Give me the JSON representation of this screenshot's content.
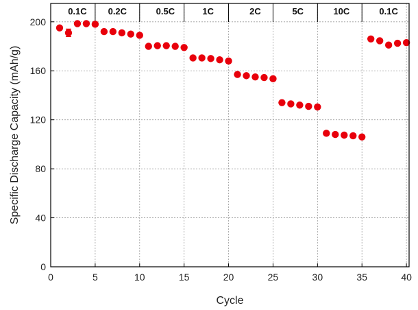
{
  "chart_data": {
    "type": "scatter",
    "title": "",
    "xlabel": "Cycle",
    "ylabel": "Specific Discharge Capacity (mAh/g)",
    "xlim": [
      0,
      40.3
    ],
    "ylim": [
      0,
      215
    ],
    "xticks": [
      0,
      5,
      10,
      15,
      20,
      25,
      30,
      35,
      40
    ],
    "yticks": [
      0,
      40,
      80,
      120,
      160,
      200
    ],
    "grid": true,
    "marker_color": "#e8000b",
    "segment_boundaries": [
      5,
      10,
      15,
      20,
      25,
      30,
      35
    ],
    "rate_labels": [
      {
        "text": "0.1C",
        "x": 3
      },
      {
        "text": "0.2C",
        "x": 7.5
      },
      {
        "text": "0.5C",
        "x": 12.9
      },
      {
        "text": "1C",
        "x": 17.7
      },
      {
        "text": "2C",
        "x": 23
      },
      {
        "text": "5C",
        "x": 27.8
      },
      {
        "text": "10C",
        "x": 32.7
      },
      {
        "text": "0.1C",
        "x": 38
      }
    ],
    "series": [
      {
        "points": [
          {
            "x": 1,
            "y": 195
          },
          {
            "x": 2,
            "y": 191
          },
          {
            "x": 3,
            "y": 198.5
          },
          {
            "x": 4,
            "y": 198.5
          },
          {
            "x": 5,
            "y": 198
          },
          {
            "x": 6,
            "y": 192
          },
          {
            "x": 7,
            "y": 192
          },
          {
            "x": 8,
            "y": 191
          },
          {
            "x": 9,
            "y": 190
          },
          {
            "x": 10,
            "y": 189
          },
          {
            "x": 11,
            "y": 180
          },
          {
            "x": 12,
            "y": 180.5
          },
          {
            "x": 13,
            "y": 180.5
          },
          {
            "x": 14,
            "y": 180
          },
          {
            "x": 15,
            "y": 179
          },
          {
            "x": 16,
            "y": 170.5
          },
          {
            "x": 17,
            "y": 170.5
          },
          {
            "x": 18,
            "y": 170
          },
          {
            "x": 19,
            "y": 169
          },
          {
            "x": 20,
            "y": 168
          },
          {
            "x": 21,
            "y": 157
          },
          {
            "x": 22,
            "y": 156
          },
          {
            "x": 23,
            "y": 155
          },
          {
            "x": 24,
            "y": 154.5
          },
          {
            "x": 25,
            "y": 153.5
          },
          {
            "x": 26,
            "y": 134
          },
          {
            "x": 27,
            "y": 133
          },
          {
            "x": 28,
            "y": 132
          },
          {
            "x": 29,
            "y": 131
          },
          {
            "x": 30,
            "y": 130.5
          },
          {
            "x": 31,
            "y": 109
          },
          {
            "x": 32,
            "y": 108
          },
          {
            "x": 33,
            "y": 107.5
          },
          {
            "x": 34,
            "y": 107
          },
          {
            "x": 35,
            "y": 106
          },
          {
            "x": 36,
            "y": 186
          },
          {
            "x": 37,
            "y": 184.5
          },
          {
            "x": 38,
            "y": 181
          },
          {
            "x": 39,
            "y": 182.5
          },
          {
            "x": 40,
            "y": 183
          }
        ],
        "error_bars": [
          {
            "x": 2,
            "err": 3
          }
        ]
      }
    ]
  }
}
